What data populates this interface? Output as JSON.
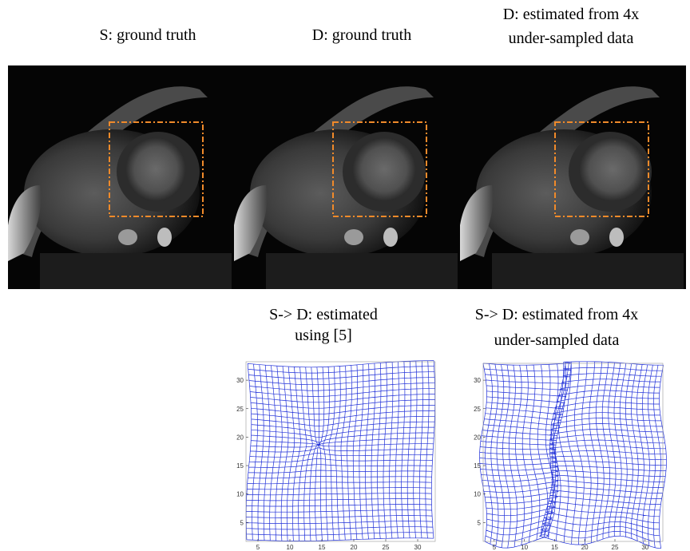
{
  "panels": [
    {
      "caption_lines": [
        "S: ground truth"
      ]
    },
    {
      "caption_lines": [
        "D: ground truth"
      ]
    },
    {
      "caption_lines": [
        "D: estimated from 4x",
        "under-sampled data"
      ]
    }
  ],
  "deformation_plots": [
    {
      "caption_lines": [
        "S-> D: estimated",
        "using [5]"
      ],
      "xticks": [
        5,
        10,
        15,
        20,
        25,
        30
      ],
      "yticks": [
        5,
        10,
        15,
        20,
        25,
        30
      ]
    },
    {
      "caption_lines": [
        "S-> D: estimated from 4x",
        "under-sampled data"
      ],
      "xticks": [
        5,
        10,
        15,
        20,
        25,
        30
      ],
      "yticks": [
        5,
        10,
        15,
        20,
        25,
        30
      ]
    }
  ]
}
